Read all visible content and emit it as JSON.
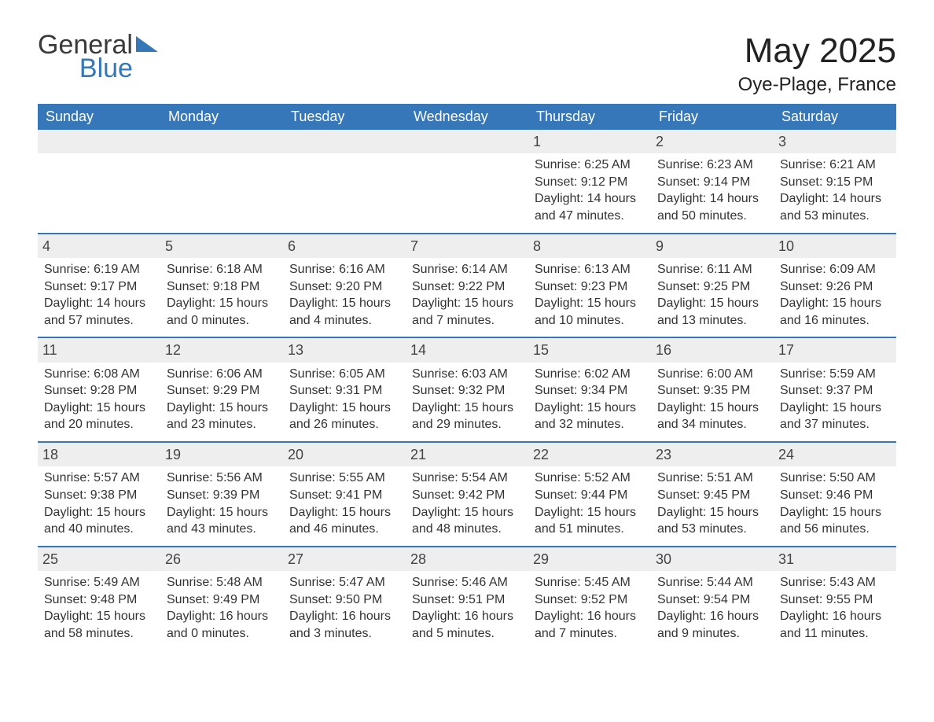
{
  "brand": {
    "part1": "General",
    "part2": "Blue"
  },
  "title": "May 2025",
  "location": "Oye-Plage, France",
  "colors": {
    "header_bg": "#3577b8",
    "header_text": "#ffffff",
    "day_number_bg": "#eeeeee",
    "border": "#3577b8",
    "body_text": "#333333",
    "background": "#ffffff"
  },
  "typography": {
    "title_fontsize": 44,
    "location_fontsize": 24,
    "dow_fontsize": 18,
    "cell_fontsize": 16
  },
  "daysOfWeek": [
    "Sunday",
    "Monday",
    "Tuesday",
    "Wednesday",
    "Thursday",
    "Friday",
    "Saturday"
  ],
  "weeks": [
    [
      {
        "n": "",
        "sunrise": "",
        "sunset": "",
        "daylight": ""
      },
      {
        "n": "",
        "sunrise": "",
        "sunset": "",
        "daylight": ""
      },
      {
        "n": "",
        "sunrise": "",
        "sunset": "",
        "daylight": ""
      },
      {
        "n": "",
        "sunrise": "",
        "sunset": "",
        "daylight": ""
      },
      {
        "n": "1",
        "sunrise": "Sunrise: 6:25 AM",
        "sunset": "Sunset: 9:12 PM",
        "daylight": "Daylight: 14 hours and 47 minutes."
      },
      {
        "n": "2",
        "sunrise": "Sunrise: 6:23 AM",
        "sunset": "Sunset: 9:14 PM",
        "daylight": "Daylight: 14 hours and 50 minutes."
      },
      {
        "n": "3",
        "sunrise": "Sunrise: 6:21 AM",
        "sunset": "Sunset: 9:15 PM",
        "daylight": "Daylight: 14 hours and 53 minutes."
      }
    ],
    [
      {
        "n": "4",
        "sunrise": "Sunrise: 6:19 AM",
        "sunset": "Sunset: 9:17 PM",
        "daylight": "Daylight: 14 hours and 57 minutes."
      },
      {
        "n": "5",
        "sunrise": "Sunrise: 6:18 AM",
        "sunset": "Sunset: 9:18 PM",
        "daylight": "Daylight: 15 hours and 0 minutes."
      },
      {
        "n": "6",
        "sunrise": "Sunrise: 6:16 AM",
        "sunset": "Sunset: 9:20 PM",
        "daylight": "Daylight: 15 hours and 4 minutes."
      },
      {
        "n": "7",
        "sunrise": "Sunrise: 6:14 AM",
        "sunset": "Sunset: 9:22 PM",
        "daylight": "Daylight: 15 hours and 7 minutes."
      },
      {
        "n": "8",
        "sunrise": "Sunrise: 6:13 AM",
        "sunset": "Sunset: 9:23 PM",
        "daylight": "Daylight: 15 hours and 10 minutes."
      },
      {
        "n": "9",
        "sunrise": "Sunrise: 6:11 AM",
        "sunset": "Sunset: 9:25 PM",
        "daylight": "Daylight: 15 hours and 13 minutes."
      },
      {
        "n": "10",
        "sunrise": "Sunrise: 6:09 AM",
        "sunset": "Sunset: 9:26 PM",
        "daylight": "Daylight: 15 hours and 16 minutes."
      }
    ],
    [
      {
        "n": "11",
        "sunrise": "Sunrise: 6:08 AM",
        "sunset": "Sunset: 9:28 PM",
        "daylight": "Daylight: 15 hours and 20 minutes."
      },
      {
        "n": "12",
        "sunrise": "Sunrise: 6:06 AM",
        "sunset": "Sunset: 9:29 PM",
        "daylight": "Daylight: 15 hours and 23 minutes."
      },
      {
        "n": "13",
        "sunrise": "Sunrise: 6:05 AM",
        "sunset": "Sunset: 9:31 PM",
        "daylight": "Daylight: 15 hours and 26 minutes."
      },
      {
        "n": "14",
        "sunrise": "Sunrise: 6:03 AM",
        "sunset": "Sunset: 9:32 PM",
        "daylight": "Daylight: 15 hours and 29 minutes."
      },
      {
        "n": "15",
        "sunrise": "Sunrise: 6:02 AM",
        "sunset": "Sunset: 9:34 PM",
        "daylight": "Daylight: 15 hours and 32 minutes."
      },
      {
        "n": "16",
        "sunrise": "Sunrise: 6:00 AM",
        "sunset": "Sunset: 9:35 PM",
        "daylight": "Daylight: 15 hours and 34 minutes."
      },
      {
        "n": "17",
        "sunrise": "Sunrise: 5:59 AM",
        "sunset": "Sunset: 9:37 PM",
        "daylight": "Daylight: 15 hours and 37 minutes."
      }
    ],
    [
      {
        "n": "18",
        "sunrise": "Sunrise: 5:57 AM",
        "sunset": "Sunset: 9:38 PM",
        "daylight": "Daylight: 15 hours and 40 minutes."
      },
      {
        "n": "19",
        "sunrise": "Sunrise: 5:56 AM",
        "sunset": "Sunset: 9:39 PM",
        "daylight": "Daylight: 15 hours and 43 minutes."
      },
      {
        "n": "20",
        "sunrise": "Sunrise: 5:55 AM",
        "sunset": "Sunset: 9:41 PM",
        "daylight": "Daylight: 15 hours and 46 minutes."
      },
      {
        "n": "21",
        "sunrise": "Sunrise: 5:54 AM",
        "sunset": "Sunset: 9:42 PM",
        "daylight": "Daylight: 15 hours and 48 minutes."
      },
      {
        "n": "22",
        "sunrise": "Sunrise: 5:52 AM",
        "sunset": "Sunset: 9:44 PM",
        "daylight": "Daylight: 15 hours and 51 minutes."
      },
      {
        "n": "23",
        "sunrise": "Sunrise: 5:51 AM",
        "sunset": "Sunset: 9:45 PM",
        "daylight": "Daylight: 15 hours and 53 minutes."
      },
      {
        "n": "24",
        "sunrise": "Sunrise: 5:50 AM",
        "sunset": "Sunset: 9:46 PM",
        "daylight": "Daylight: 15 hours and 56 minutes."
      }
    ],
    [
      {
        "n": "25",
        "sunrise": "Sunrise: 5:49 AM",
        "sunset": "Sunset: 9:48 PM",
        "daylight": "Daylight: 15 hours and 58 minutes."
      },
      {
        "n": "26",
        "sunrise": "Sunrise: 5:48 AM",
        "sunset": "Sunset: 9:49 PM",
        "daylight": "Daylight: 16 hours and 0 minutes."
      },
      {
        "n": "27",
        "sunrise": "Sunrise: 5:47 AM",
        "sunset": "Sunset: 9:50 PM",
        "daylight": "Daylight: 16 hours and 3 minutes."
      },
      {
        "n": "28",
        "sunrise": "Sunrise: 5:46 AM",
        "sunset": "Sunset: 9:51 PM",
        "daylight": "Daylight: 16 hours and 5 minutes."
      },
      {
        "n": "29",
        "sunrise": "Sunrise: 5:45 AM",
        "sunset": "Sunset: 9:52 PM",
        "daylight": "Daylight: 16 hours and 7 minutes."
      },
      {
        "n": "30",
        "sunrise": "Sunrise: 5:44 AM",
        "sunset": "Sunset: 9:54 PM",
        "daylight": "Daylight: 16 hours and 9 minutes."
      },
      {
        "n": "31",
        "sunrise": "Sunrise: 5:43 AM",
        "sunset": "Sunset: 9:55 PM",
        "daylight": "Daylight: 16 hours and 11 minutes."
      }
    ]
  ]
}
